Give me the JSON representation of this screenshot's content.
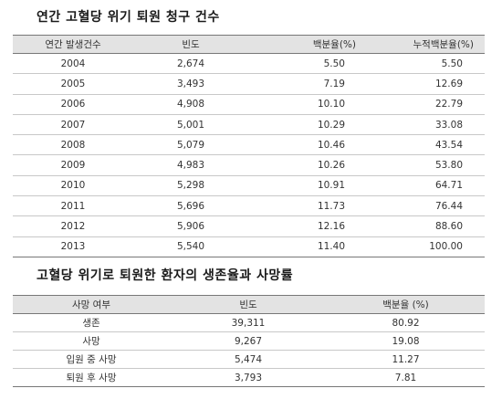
{
  "table1": {
    "title": "연간 고혈당 위기 퇴원 청구 건수",
    "headers": [
      "연간 발생건수",
      "빈도",
      "백분율(%)",
      "누적백분율(%)"
    ],
    "rows": [
      [
        "2004",
        "2,674",
        "5.50",
        "5.50"
      ],
      [
        "2005",
        "3,493",
        "7.19",
        "12.69"
      ],
      [
        "2006",
        "4,908",
        "10.10",
        "22.79"
      ],
      [
        "2007",
        "5,001",
        "10.29",
        "33.08"
      ],
      [
        "2008",
        "5,079",
        "10.46",
        "43.54"
      ],
      [
        "2009",
        "4,983",
        "10.26",
        "53.80"
      ],
      [
        "2010",
        "5,298",
        "10.91",
        "64.71"
      ],
      [
        "2011",
        "5,696",
        "11.73",
        "76.44"
      ],
      [
        "2012",
        "5,906",
        "12.16",
        "88.60"
      ],
      [
        "2013",
        "5,540",
        "11.40",
        "100.00"
      ]
    ]
  },
  "table2": {
    "title": "고혈당 위기로 퇴원한 환자의 생존율과 사망률",
    "headers": [
      "사망 여부",
      "빈도",
      "백분율 (%)"
    ],
    "rows": [
      [
        "생존",
        "39,311",
        "80.92"
      ],
      [
        "사망",
        "9,267",
        "19.08"
      ],
      [
        "입원 중 사망",
        "5,474",
        "11.27"
      ],
      [
        "퇴원 후 사망",
        "3,793",
        "7.81"
      ]
    ]
  }
}
